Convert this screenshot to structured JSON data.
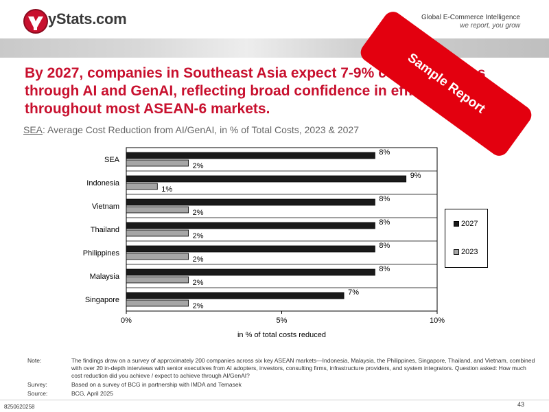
{
  "header": {
    "brand": "yStats.com",
    "tagline_main": "Global E-Commerce Intelligence",
    "tagline_sub": "we report, you grow"
  },
  "title": "By 2027, companies in Southeast Asia expect 7-9% cost reductions through AI and GenAI, reflecting broad confidence in efficiency gains throughout most ASEAN-6 markets.",
  "subtitle": {
    "region": "SEA",
    "text": ": Average Cost Reduction from AI/GenAI, in % of Total Costs, 2023 & 2027"
  },
  "stamp": "Sample Report",
  "chart_data": {
    "type": "bar",
    "orientation": "horizontal",
    "categories": [
      "SEA",
      "Indonesia",
      "Vietnam",
      "Thailand",
      "Philippines",
      "Malaysia",
      "Singapore"
    ],
    "series": [
      {
        "name": "2027",
        "values": [
          8,
          9,
          8,
          8,
          8,
          8,
          7
        ],
        "labels": [
          "8%",
          "9%",
          "8%",
          "8%",
          "8%",
          "8%",
          "7%"
        ],
        "color": "#1a1a1a"
      },
      {
        "name": "2023",
        "values": [
          2,
          1,
          2,
          2,
          2,
          2,
          2
        ],
        "labels": [
          "2%",
          "1%",
          "2%",
          "2%",
          "2%",
          "2%",
          "2%"
        ],
        "color": "#a6a6a6"
      }
    ],
    "xlabel": "in % of total costs reduced",
    "xlim": [
      0,
      10
    ],
    "xticks": [
      0,
      5,
      10
    ],
    "xtick_labels": [
      "0%",
      "5%",
      "10%"
    ],
    "grid": true,
    "legend_position": "right"
  },
  "notes": {
    "note_label": "Note:",
    "note_text": "The findings draw on a survey of approximately 200 companies across six key ASEAN markets—Indonesia, Malaysia, the Philippines, Singapore, Thailand, and Vietnam, combined with over 20 in-depth interviews with senior executives from AI adopters, investors, consulting firms, infrastructure providers, and system integrators. Question asked:  How much cost reduction did you achieve / expect to achieve through AI/GenAI?",
    "survey_label": "Survey:",
    "survey_text": "Based on a survey of BCG in partnership with IMDA and Temasek",
    "source_label": "Source:",
    "source_text": "BCG, April 2025"
  },
  "footer": {
    "page_number": "43",
    "doc_id": "8250620258"
  }
}
